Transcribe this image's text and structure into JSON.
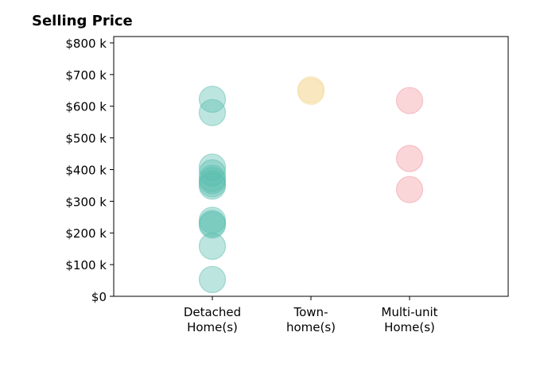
{
  "chart_data": {
    "type": "scatter",
    "title": "Selling Price",
    "xlabel": "",
    "ylabel": "",
    "categories": [
      [
        "Detached",
        "Home(s)"
      ],
      [
        "Town-",
        "home(s)"
      ],
      [
        "Multi-unit",
        "Home(s)"
      ]
    ],
    "ylim": [
      0,
      820000
    ],
    "yticks": [
      0,
      100000,
      200000,
      300000,
      400000,
      500000,
      600000,
      700000,
      800000
    ],
    "ytick_labels": [
      "$0",
      "$100 k",
      "$200 k",
      "$300 k",
      "$400 k",
      "$500 k",
      "$600 k",
      "$700 k",
      "$800 k"
    ],
    "grid": false,
    "series": [
      {
        "category": 0,
        "color": "#5bbdb0",
        "values": [
          622000,
          580000,
          408000,
          390000,
          372000,
          365000,
          355000,
          348000,
          240000,
          230000,
          225000,
          158000,
          53000
        ]
      },
      {
        "category": 1,
        "color": "#f5d99a",
        "values": [
          652000,
          647000
        ]
      },
      {
        "category": 2,
        "color": "#f2989f",
        "values": [
          618000,
          435000,
          337000
        ]
      }
    ]
  }
}
